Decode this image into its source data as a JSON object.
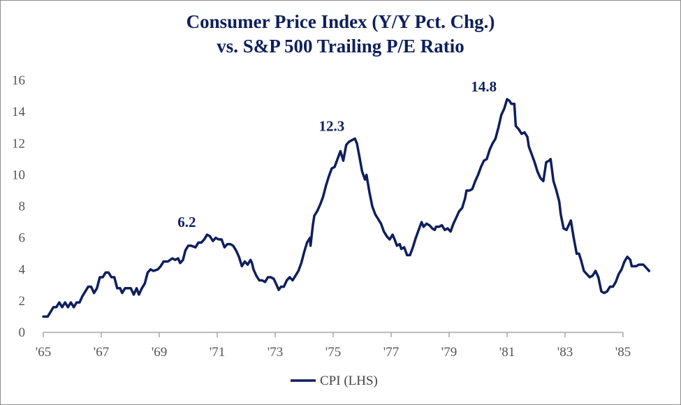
{
  "chart_data": {
    "type": "line",
    "title": "Consumer Price Index (Y/Y Pct. Chg.)",
    "subtitle": "vs. S&P 500 Trailing P/E Ratio",
    "xlabel": "",
    "ylabel": "",
    "xlim": [
      1965,
      1985
    ],
    "ylim": [
      0,
      16
    ],
    "x_ticks": [
      1965,
      1967,
      1969,
      1971,
      1973,
      1975,
      1977,
      1979,
      1981,
      1983,
      1985
    ],
    "x_tick_labels": [
      "'65",
      "'67",
      "'69",
      "'71",
      "'73",
      "'75",
      "'77",
      "'79",
      "'81",
      "'83",
      "'85"
    ],
    "y_ticks": [
      0,
      2,
      4,
      6,
      8,
      10,
      12,
      14,
      16
    ],
    "y_tick_labels": [
      "0",
      "2",
      "4",
      "6",
      "8",
      "10",
      "12",
      "14",
      "16"
    ],
    "grid": false,
    "legend_position": "bottom-center",
    "annotations": [
      {
        "text": "6.2",
        "x": 1969.95,
        "y": 6.2
      },
      {
        "text": "12.3",
        "x": 1974.95,
        "y": 12.3
      },
      {
        "text": "14.8",
        "x": 1980.2,
        "y": 14.8
      }
    ],
    "series": [
      {
        "name": "CPI (LHS)",
        "color": "#0d1f5c",
        "points": [
          [
            1965.0,
            1.0
          ],
          [
            1965.15,
            1.0
          ],
          [
            1965.25,
            1.3
          ],
          [
            1965.35,
            1.6
          ],
          [
            1965.45,
            1.6
          ],
          [
            1965.55,
            1.9
          ],
          [
            1965.65,
            1.6
          ],
          [
            1965.75,
            1.9
          ],
          [
            1965.85,
            1.6
          ],
          [
            1965.95,
            1.9
          ],
          [
            1966.05,
            1.6
          ],
          [
            1966.15,
            1.9
          ],
          [
            1966.25,
            1.9
          ],
          [
            1966.35,
            2.3
          ],
          [
            1966.45,
            2.6
          ],
          [
            1966.55,
            2.9
          ],
          [
            1966.65,
            2.9
          ],
          [
            1966.75,
            2.5
          ],
          [
            1966.85,
            2.8
          ],
          [
            1966.95,
            3.5
          ],
          [
            1967.05,
            3.5
          ],
          [
            1967.15,
            3.8
          ],
          [
            1967.25,
            3.8
          ],
          [
            1967.35,
            3.5
          ],
          [
            1967.45,
            3.5
          ],
          [
            1967.55,
            2.8
          ],
          [
            1967.65,
            2.8
          ],
          [
            1967.72,
            2.5
          ],
          [
            1967.82,
            2.8
          ],
          [
            1967.92,
            2.8
          ],
          [
            1968.02,
            2.8
          ],
          [
            1968.12,
            2.4
          ],
          [
            1968.22,
            2.8
          ],
          [
            1968.3,
            2.4
          ],
          [
            1968.4,
            2.8
          ],
          [
            1968.5,
            3.1
          ],
          [
            1968.6,
            3.8
          ],
          [
            1968.7,
            4.0
          ],
          [
            1968.8,
            3.9
          ],
          [
            1968.95,
            4.0
          ],
          [
            1969.05,
            4.2
          ],
          [
            1969.15,
            4.5
          ],
          [
            1969.3,
            4.5
          ],
          [
            1969.45,
            4.7
          ],
          [
            1969.55,
            4.6
          ],
          [
            1969.65,
            4.7
          ],
          [
            1969.72,
            4.4
          ],
          [
            1969.82,
            4.6
          ],
          [
            1969.9,
            5.2
          ],
          [
            1970.0,
            5.5
          ],
          [
            1970.1,
            5.5
          ],
          [
            1970.25,
            5.4
          ],
          [
            1970.35,
            5.7
          ],
          [
            1970.45,
            5.7
          ],
          [
            1970.55,
            5.9
          ],
          [
            1970.65,
            6.2
          ],
          [
            1970.75,
            6.1
          ],
          [
            1970.85,
            5.8
          ],
          [
            1970.95,
            6.0
          ],
          [
            1971.05,
            5.9
          ],
          [
            1971.15,
            5.9
          ],
          [
            1971.25,
            5.4
          ],
          [
            1971.35,
            5.6
          ],
          [
            1971.45,
            5.6
          ],
          [
            1971.55,
            5.5
          ],
          [
            1971.65,
            5.2
          ],
          [
            1971.75,
            4.8
          ],
          [
            1971.85,
            4.2
          ],
          [
            1971.95,
            4.5
          ],
          [
            1972.05,
            4.3
          ],
          [
            1972.15,
            4.6
          ],
          [
            1972.2,
            4.4
          ],
          [
            1972.25,
            4.0
          ],
          [
            1972.35,
            3.6
          ],
          [
            1972.45,
            3.3
          ],
          [
            1972.55,
            3.3
          ],
          [
            1972.65,
            3.2
          ],
          [
            1972.75,
            3.5
          ],
          [
            1972.85,
            3.5
          ],
          [
            1972.95,
            3.4
          ],
          [
            1973.05,
            3.0
          ],
          [
            1973.12,
            2.7
          ],
          [
            1973.2,
            2.9
          ],
          [
            1973.3,
            2.9
          ],
          [
            1973.4,
            3.3
          ],
          [
            1973.5,
            3.5
          ],
          [
            1973.6,
            3.3
          ],
          [
            1973.7,
            3.6
          ],
          [
            1973.8,
            3.9
          ],
          [
            1973.9,
            4.4
          ],
          [
            1974.0,
            5.1
          ],
          [
            1974.1,
            5.7
          ],
          [
            1974.2,
            6.0
          ],
          [
            1974.22,
            5.5
          ],
          [
            1974.3,
            6.8
          ],
          [
            1974.35,
            7.4
          ],
          [
            1974.45,
            7.7
          ],
          [
            1974.55,
            8.1
          ],
          [
            1974.65,
            8.6
          ],
          [
            1974.75,
            9.3
          ],
          [
            1974.85,
            9.9
          ],
          [
            1974.95,
            10.4
          ],
          [
            1975.05,
            10.5
          ],
          [
            1975.15,
            11.0
          ],
          [
            1975.25,
            11.5
          ],
          [
            1975.35,
            10.9
          ],
          [
            1975.45,
            11.9
          ],
          [
            1975.55,
            12.1
          ],
          [
            1975.65,
            12.2
          ],
          [
            1975.75,
            12.3
          ],
          [
            1975.82,
            12.0
          ],
          [
            1975.9,
            11.2
          ],
          [
            1976.0,
            10.2
          ],
          [
            1976.1,
            9.7
          ],
          [
            1976.15,
            10.0
          ],
          [
            1976.25,
            8.9
          ],
          [
            1976.35,
            8.0
          ],
          [
            1976.45,
            7.5
          ],
          [
            1976.55,
            7.2
          ],
          [
            1976.65,
            6.9
          ],
          [
            1976.75,
            6.4
          ],
          [
            1976.85,
            6.1
          ],
          [
            1976.95,
            5.9
          ],
          [
            1977.05,
            6.2
          ],
          [
            1977.12,
            5.9
          ],
          [
            1977.2,
            5.5
          ],
          [
            1977.3,
            5.6
          ],
          [
            1977.35,
            5.3
          ],
          [
            1977.45,
            5.4
          ],
          [
            1977.55,
            4.9
          ],
          [
            1977.65,
            4.9
          ],
          [
            1977.75,
            5.4
          ],
          [
            1977.85,
            6.0
          ],
          [
            1977.95,
            6.5
          ],
          [
            1978.05,
            7.0
          ],
          [
            1978.12,
            6.7
          ],
          [
            1978.22,
            6.9
          ],
          [
            1978.32,
            6.8
          ],
          [
            1978.42,
            6.6
          ],
          [
            1978.5,
            6.5
          ],
          [
            1978.55,
            6.7
          ],
          [
            1978.65,
            6.7
          ],
          [
            1978.75,
            6.8
          ],
          [
            1978.85,
            6.5
          ],
          [
            1978.95,
            6.6
          ],
          [
            1979.05,
            6.4
          ],
          [
            1979.15,
            6.9
          ],
          [
            1979.25,
            7.3
          ],
          [
            1979.35,
            7.7
          ],
          [
            1979.45,
            7.9
          ],
          [
            1979.55,
            8.5
          ],
          [
            1979.6,
            9.0
          ],
          [
            1979.7,
            9.0
          ],
          [
            1979.8,
            9.1
          ],
          [
            1979.9,
            9.6
          ],
          [
            1980.0,
            10.0
          ],
          [
            1980.1,
            10.5
          ],
          [
            1980.2,
            10.9
          ],
          [
            1980.3,
            11.0
          ],
          [
            1980.4,
            11.6
          ],
          [
            1980.5,
            12.0
          ],
          [
            1980.6,
            12.3
          ],
          [
            1980.7,
            13.0
          ],
          [
            1980.8,
            13.8
          ],
          [
            1980.9,
            14.2
          ],
          [
            1981.0,
            14.8
          ],
          [
            1981.08,
            14.7
          ],
          [
            1981.15,
            14.5
          ],
          [
            1981.25,
            14.5
          ],
          [
            1981.3,
            13.1
          ],
          [
            1981.4,
            12.9
          ],
          [
            1981.5,
            12.6
          ],
          [
            1981.6,
            12.7
          ],
          [
            1981.7,
            12.4
          ],
          [
            1981.75,
            11.8
          ],
          [
            1981.85,
            11.3
          ],
          [
            1981.95,
            10.8
          ],
          [
            1982.05,
            10.2
          ],
          [
            1982.15,
            9.8
          ],
          [
            1982.25,
            9.6
          ],
          [
            1982.35,
            10.8
          ],
          [
            1982.45,
            10.9
          ],
          [
            1982.5,
            11.0
          ],
          [
            1982.6,
            9.6
          ],
          [
            1982.7,
            9.0
          ],
          [
            1982.8,
            8.3
          ],
          [
            1982.85,
            7.5
          ],
          [
            1982.95,
            6.6
          ],
          [
            1983.05,
            6.5
          ],
          [
            1983.15,
            6.9
          ],
          [
            1983.2,
            7.1
          ],
          [
            1983.3,
            6.0
          ],
          [
            1983.4,
            5.0
          ],
          [
            1983.48,
            5.0
          ],
          [
            1983.55,
            4.6
          ],
          [
            1983.65,
            3.9
          ],
          [
            1983.75,
            3.7
          ],
          [
            1983.85,
            3.5
          ],
          [
            1983.95,
            3.6
          ],
          [
            1984.05,
            3.9
          ],
          [
            1984.15,
            3.5
          ],
          [
            1984.25,
            2.6
          ],
          [
            1984.35,
            2.5
          ],
          [
            1984.45,
            2.6
          ],
          [
            1984.55,
            2.9
          ],
          [
            1984.65,
            2.9
          ],
          [
            1984.75,
            3.2
          ],
          [
            1984.85,
            3.7
          ],
          [
            1984.95,
            4.0
          ],
          [
            1985.05,
            4.5
          ],
          [
            1985.15,
            4.8
          ],
          [
            1985.25,
            4.6
          ],
          [
            1985.3,
            4.2
          ],
          [
            1985.45,
            4.2
          ],
          [
            1985.55,
            4.3
          ],
          [
            1985.7,
            4.3
          ],
          [
            1985.8,
            4.1
          ],
          [
            1985.9,
            3.9
          ]
        ]
      }
    ]
  },
  "legend": {
    "label": "CPI (LHS)"
  }
}
